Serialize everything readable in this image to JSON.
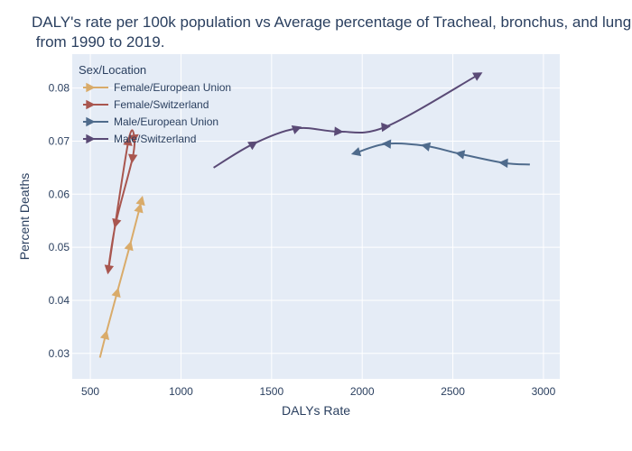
{
  "chart_data": {
    "type": "line",
    "title_lines": [
      "DALY's rate per 100k population vs Average percentage of Tracheal, bronchus, and lung",
      " from 1990 to 2019."
    ],
    "xlabel": "DALYs Rate",
    "ylabel": "Percent Deaths",
    "xlim": [
      400,
      3090
    ],
    "ylim": [
      0.0252,
      0.0864
    ],
    "x_ticks": [
      500,
      1000,
      1500,
      2000,
      2500,
      3000
    ],
    "x_tick_labels": [
      "500",
      "1000",
      "1500",
      "2000",
      "2500",
      "3000"
    ],
    "y_ticks": [
      0.03,
      0.04,
      0.05,
      0.06,
      0.07,
      0.08
    ],
    "y_tick_labels": [
      "0.03",
      "0.04",
      "0.05",
      "0.06",
      "0.07",
      "0.08"
    ],
    "grid": true,
    "legend_title": "Sex/Location",
    "legend_position": "top-left",
    "series": [
      {
        "name": "Female/European Union",
        "color": "#d9ab6a",
        "x": [
          553,
          585,
          648,
          718,
          772,
          782
        ],
        "y": [
          0.0292,
          0.0335,
          0.0415,
          0.0503,
          0.0574,
          0.0588
        ]
      },
      {
        "name": "Female/Switzerland",
        "color": "#a9564f",
        "x": [
          745,
          732,
          640,
          600,
          710,
          745
        ],
        "y": [
          0.0708,
          0.0667,
          0.0545,
          0.0458,
          0.07,
          0.0708
        ]
      },
      {
        "name": "Male/European Union",
        "color": "#4f6b8c",
        "x": [
          2925,
          2780,
          2540,
          2350,
          2135,
          1965
        ],
        "y": [
          0.0656,
          0.0659,
          0.0676,
          0.0691,
          0.0695,
          0.0678
        ]
      },
      {
        "name": "Male/Switzerland",
        "color": "#5a4a76",
        "x": [
          1180,
          1400,
          1640,
          1870,
          2130,
          2640
        ],
        "y": [
          0.065,
          0.0695,
          0.0724,
          0.0718,
          0.0727,
          0.0825
        ]
      }
    ]
  }
}
